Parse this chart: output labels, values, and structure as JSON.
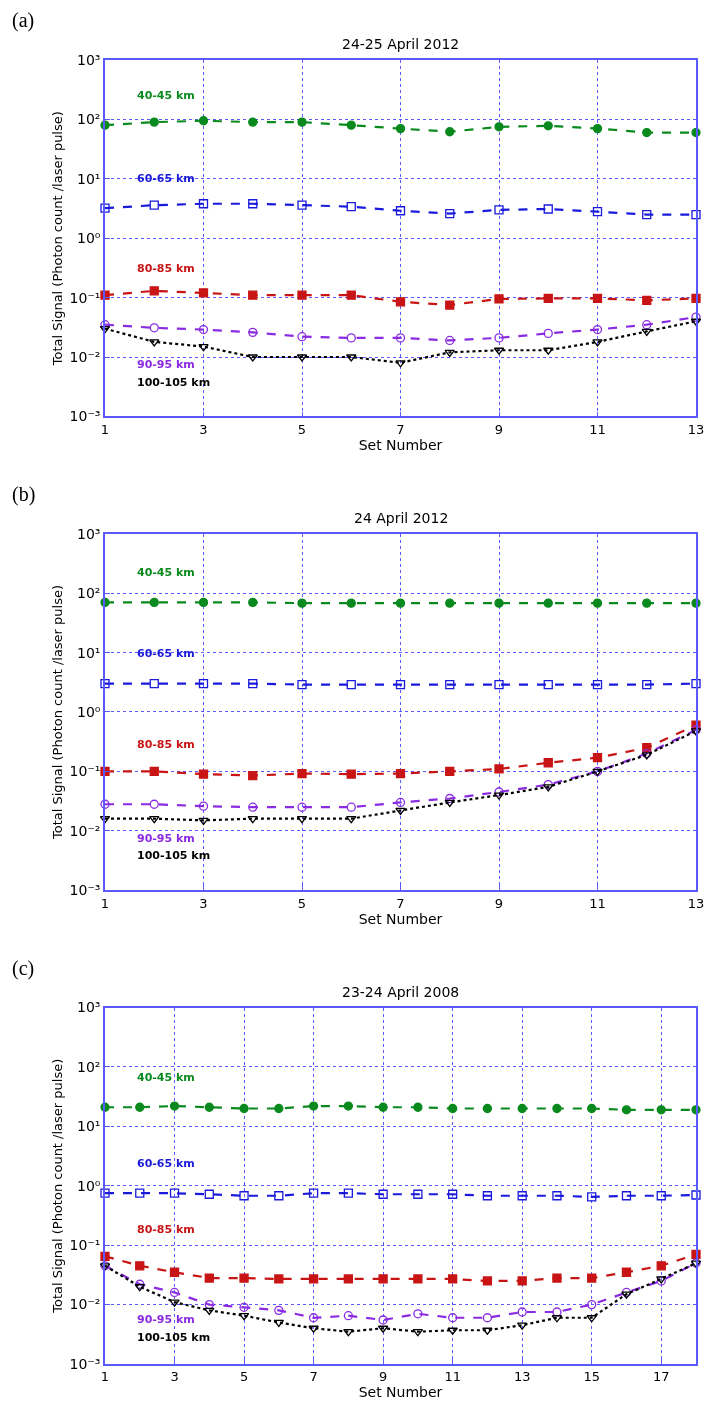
{
  "chart_data": [
    {
      "type": "line",
      "title": "24-25 April 2012",
      "xlabel": "Set Number",
      "ylabel": "Total Signal (Photon count /laser pulse)",
      "annotations": [
        "(a)"
      ],
      "x": [
        1,
        2,
        3,
        4,
        5,
        6,
        7,
        8,
        9,
        10,
        11,
        12,
        13
      ],
      "xlim": [
        1,
        13
      ],
      "xticks": [
        1,
        3,
        5,
        7,
        9,
        11,
        13
      ],
      "log": true,
      "ylim": [
        0.001,
        1000
      ],
      "yticks": [
        {
          "value": 0.001,
          "label": "10⁻³"
        },
        {
          "value": 0.01,
          "label": "10⁻²"
        },
        {
          "value": 0.1,
          "label": "10⁻¹"
        },
        {
          "value": 1,
          "label": "10⁰"
        },
        {
          "value": 10,
          "label": "10¹"
        },
        {
          "value": 100,
          "label": "10²"
        },
        {
          "value": 1000,
          "label": "10³"
        }
      ],
      "grid": true,
      "legend": false,
      "series": [
        {
          "name": "40-45 km",
          "color": "#0a8a1e",
          "marker": "circle",
          "line_style": "dashed",
          "values": [
            80,
            90,
            95,
            90,
            90,
            80,
            70,
            62,
            75,
            78,
            70,
            60,
            60
          ]
        },
        {
          "name": "60-65 km",
          "color": "#1a1adc",
          "marker": "square",
          "line_style": "dashed",
          "values": [
            3.2,
            3.6,
            3.8,
            3.8,
            3.6,
            3.4,
            2.9,
            2.6,
            3.0,
            3.1,
            2.8,
            2.5,
            2.5
          ]
        },
        {
          "name": "80-85 km",
          "color": "#c81414",
          "marker": "square",
          "line_style": "dashed",
          "values": [
            0.11,
            0.13,
            0.12,
            0.11,
            0.11,
            0.11,
            0.085,
            0.075,
            0.095,
            0.097,
            0.097,
            0.09,
            0.097
          ]
        },
        {
          "name": "90-95 km",
          "color": "#8a2be2",
          "marker": "circle",
          "line_style": "dashed",
          "values": [
            0.035,
            0.031,
            0.029,
            0.026,
            0.022,
            0.021,
            0.021,
            0.019,
            0.021,
            0.025,
            0.029,
            0.035,
            0.047
          ]
        },
        {
          "name": "100-105 km",
          "color": "#000000",
          "marker": "triangle",
          "line_style": "dotted",
          "values": [
            0.03,
            0.018,
            0.015,
            0.01,
            0.01,
            0.01,
            0.008,
            0.012,
            0.013,
            0.013,
            0.018,
            0.027,
            0.04
          ]
        }
      ]
    },
    {
      "type": "line",
      "title": "24 April 2012",
      "xlabel": "Set Number",
      "ylabel": "Total Signal (Photon count /laser pulse)",
      "annotations": [
        "(b)"
      ],
      "x": [
        1,
        2,
        3,
        4,
        5,
        6,
        7,
        8,
        9,
        10,
        11,
        12,
        13
      ],
      "xlim": [
        1,
        13
      ],
      "xticks": [
        1,
        3,
        5,
        7,
        9,
        11,
        13
      ],
      "log": true,
      "ylim": [
        0.001,
        1000
      ],
      "yticks": [
        {
          "value": 0.001,
          "label": "10⁻³"
        },
        {
          "value": 0.01,
          "label": "10⁻²"
        },
        {
          "value": 0.1,
          "label": "10⁻¹"
        },
        {
          "value": 1,
          "label": "10⁰"
        },
        {
          "value": 10,
          "label": "10¹"
        },
        {
          "value": 100,
          "label": "10²"
        },
        {
          "value": 1000,
          "label": "10³"
        }
      ],
      "grid": true,
      "legend": false,
      "series": [
        {
          "name": "40-45 km",
          "color": "#0a8a1e",
          "marker": "circle",
          "line_style": "dashed",
          "values": [
            70,
            70,
            70,
            70,
            68,
            68,
            68,
            68,
            68,
            68,
            68,
            68,
            68
          ]
        },
        {
          "name": "60-65 km",
          "color": "#1a1adc",
          "marker": "square",
          "line_style": "dashed",
          "values": [
            3.0,
            3.0,
            3.0,
            3.0,
            2.9,
            2.9,
            2.9,
            2.9,
            2.9,
            2.9,
            2.9,
            2.9,
            3.0
          ]
        },
        {
          "name": "80-85 km",
          "color": "#c81414",
          "marker": "square",
          "line_style": "dashed",
          "values": [
            0.1,
            0.1,
            0.09,
            0.085,
            0.092,
            0.09,
            0.092,
            0.1,
            0.11,
            0.14,
            0.17,
            0.25,
            0.6
          ]
        },
        {
          "name": "90-95 km",
          "color": "#8a2be2",
          "marker": "circle",
          "line_style": "dashed",
          "values": [
            0.028,
            0.028,
            0.026,
            0.025,
            0.025,
            0.025,
            0.03,
            0.035,
            0.045,
            0.06,
            0.1,
            0.2,
            0.5
          ]
        },
        {
          "name": "100-105 km",
          "color": "#000000",
          "marker": "triangle",
          "line_style": "dotted",
          "values": [
            0.016,
            0.016,
            0.015,
            0.016,
            0.016,
            0.016,
            0.022,
            0.03,
            0.04,
            0.055,
            0.1,
            0.19,
            0.48
          ]
        }
      ]
    },
    {
      "type": "line",
      "title": "23-24 April 2008",
      "xlabel": "Set Number",
      "ylabel": "Total Signal (Photon count /laser pulse)",
      "annotations": [
        "(c)"
      ],
      "x": [
        1,
        2,
        3,
        4,
        5,
        6,
        7,
        8,
        9,
        10,
        11,
        12,
        13,
        14,
        15,
        16,
        17,
        18
      ],
      "xlim": [
        1,
        18
      ],
      "xticks": [
        1,
        3,
        5,
        7,
        9,
        11,
        13,
        15,
        17
      ],
      "log": true,
      "ylim": [
        0.001,
        1000
      ],
      "yticks": [
        {
          "value": 0.001,
          "label": "10⁻³"
        },
        {
          "value": 0.01,
          "label": "10⁻²"
        },
        {
          "value": 0.1,
          "label": "10⁻¹"
        },
        {
          "value": 1,
          "label": "10⁰"
        },
        {
          "value": 10,
          "label": "10¹"
        },
        {
          "value": 100,
          "label": "10²"
        },
        {
          "value": 1000,
          "label": "10³"
        }
      ],
      "grid": true,
      "legend": false,
      "series": [
        {
          "name": "40-45 km",
          "color": "#0a8a1e",
          "marker": "circle",
          "line_style": "dashed",
          "values": [
            21,
            21,
            22,
            21,
            20,
            20,
            22,
            22,
            21,
            21,
            20,
            20,
            20,
            20,
            20,
            19,
            19,
            19
          ]
        },
        {
          "name": "60-65 km",
          "color": "#1a1adc",
          "marker": "square",
          "line_style": "dashed",
          "values": [
            0.75,
            0.75,
            0.75,
            0.72,
            0.68,
            0.68,
            0.75,
            0.75,
            0.72,
            0.72,
            0.72,
            0.68,
            0.68,
            0.68,
            0.65,
            0.68,
            0.68,
            0.7
          ]
        },
        {
          "name": "80-85 km",
          "color": "#c81414",
          "marker": "square",
          "line_style": "dashed",
          "values": [
            0.065,
            0.045,
            0.035,
            0.028,
            0.028,
            0.027,
            0.027,
            0.027,
            0.027,
            0.027,
            0.027,
            0.025,
            0.025,
            0.028,
            0.028,
            0.035,
            0.045,
            0.07
          ]
        },
        {
          "name": "90-95 km",
          "color": "#8a2be2",
          "marker": "circle",
          "line_style": "dashed",
          "values": [
            0.045,
            0.022,
            0.016,
            0.01,
            0.009,
            0.008,
            0.006,
            0.0065,
            0.0055,
            0.007,
            0.006,
            0.006,
            0.0075,
            0.0075,
            0.01,
            0.016,
            0.025,
            0.05
          ]
        },
        {
          "name": "100-105 km",
          "color": "#000000",
          "marker": "triangle",
          "line_style": "dotted",
          "values": [
            0.045,
            0.02,
            0.011,
            0.008,
            0.0065,
            0.005,
            0.004,
            0.0035,
            0.004,
            0.0035,
            0.0037,
            0.0037,
            0.0045,
            0.006,
            0.006,
            0.015,
            0.027,
            0.05
          ]
        }
      ]
    }
  ]
}
